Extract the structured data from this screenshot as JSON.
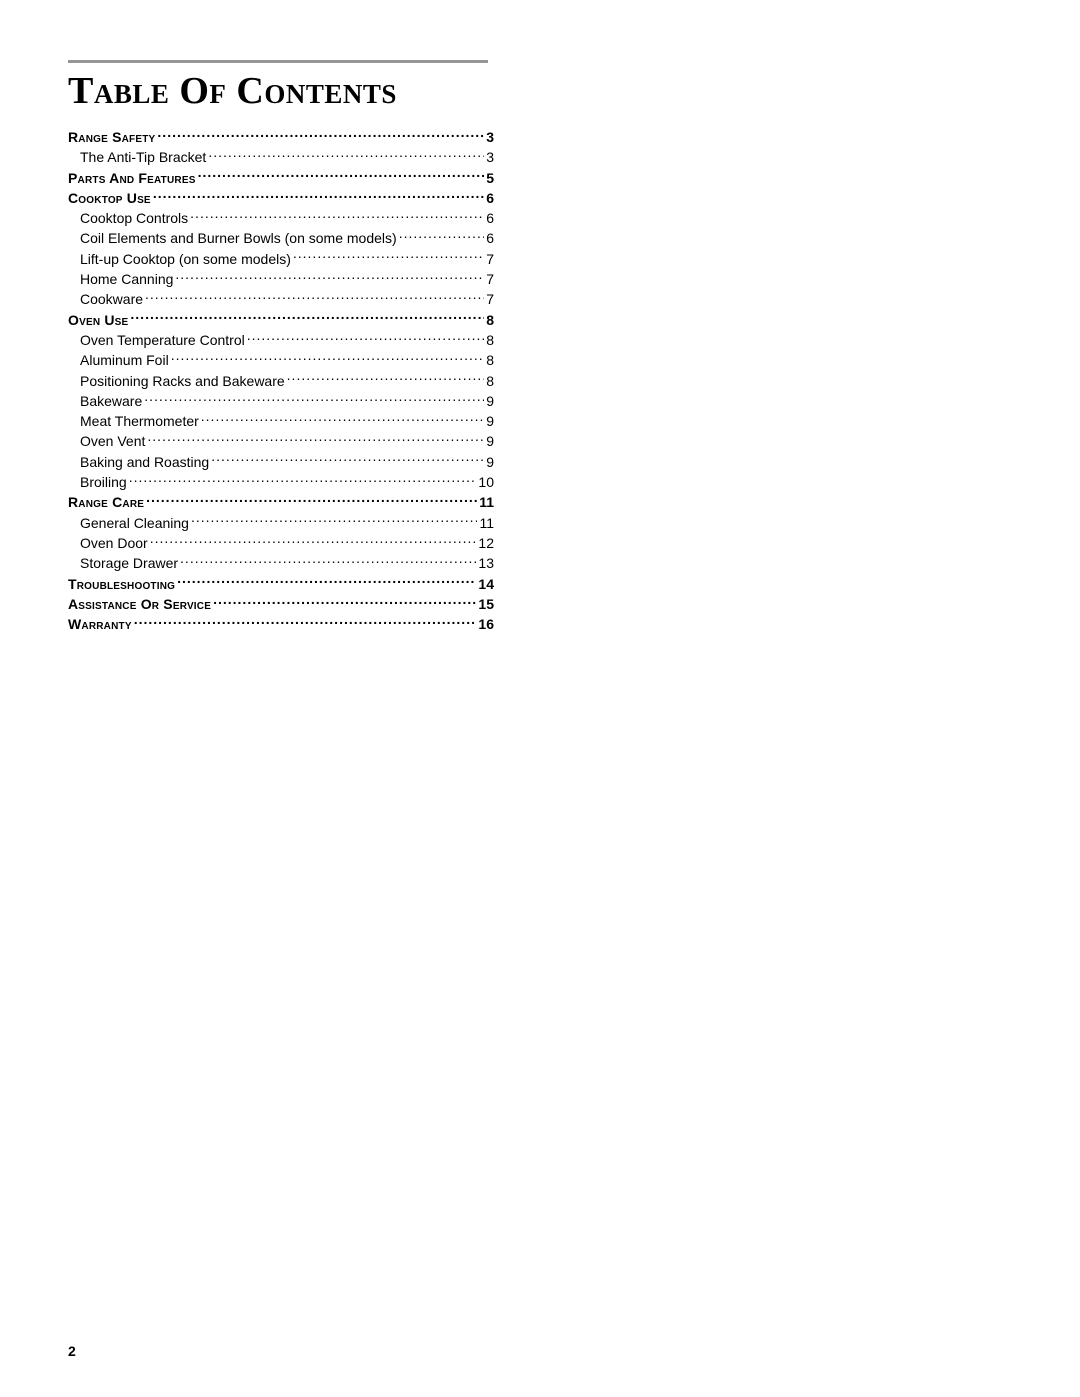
{
  "title": "Table Of Contents",
  "page_number": "2",
  "colors": {
    "rule": "#969696",
    "text": "#000000",
    "background": "#ffffff"
  },
  "toc": [
    {
      "label": "Range Safety",
      "page": "3",
      "type": "section"
    },
    {
      "label": "The Anti-Tip Bracket",
      "page": "3",
      "type": "sub"
    },
    {
      "label": "Parts And Features",
      "page": "5",
      "type": "section"
    },
    {
      "label": "Cooktop Use",
      "page": "6",
      "type": "section"
    },
    {
      "label": "Cooktop Controls",
      "page": "6",
      "type": "sub"
    },
    {
      "label": "Coil Elements and Burner Bowls (on some models)",
      "page": "6",
      "type": "sub"
    },
    {
      "label": "Lift-up Cooktop (on some models)",
      "page": "7",
      "type": "sub"
    },
    {
      "label": "Home Canning",
      "page": "7",
      "type": "sub"
    },
    {
      "label": "Cookware",
      "page": "7",
      "type": "sub"
    },
    {
      "label": "Oven Use",
      "page": "8",
      "type": "section"
    },
    {
      "label": "Oven Temperature Control",
      "page": "8",
      "type": "sub"
    },
    {
      "label": "Aluminum Foil",
      "page": "8",
      "type": "sub"
    },
    {
      "label": "Positioning Racks and Bakeware",
      "page": "8",
      "type": "sub"
    },
    {
      "label": "Bakeware",
      "page": "9",
      "type": "sub"
    },
    {
      "label": "Meat Thermometer",
      "page": "9",
      "type": "sub"
    },
    {
      "label": "Oven Vent",
      "page": "9",
      "type": "sub"
    },
    {
      "label": "Baking and Roasting",
      "page": "9",
      "type": "sub"
    },
    {
      "label": "Broiling",
      "page": "10",
      "type": "sub"
    },
    {
      "label": "Range Care",
      "page": "11",
      "type": "section"
    },
    {
      "label": "General Cleaning",
      "page": "11",
      "type": "sub"
    },
    {
      "label": "Oven Door",
      "page": "12",
      "type": "sub"
    },
    {
      "label": "Storage Drawer",
      "page": "13",
      "type": "sub"
    },
    {
      "label": "Troubleshooting",
      "page": "14",
      "type": "section"
    },
    {
      "label": "Assistance Or Service",
      "page": "15",
      "type": "section"
    },
    {
      "label": "Warranty",
      "page": "16",
      "type": "section"
    }
  ]
}
